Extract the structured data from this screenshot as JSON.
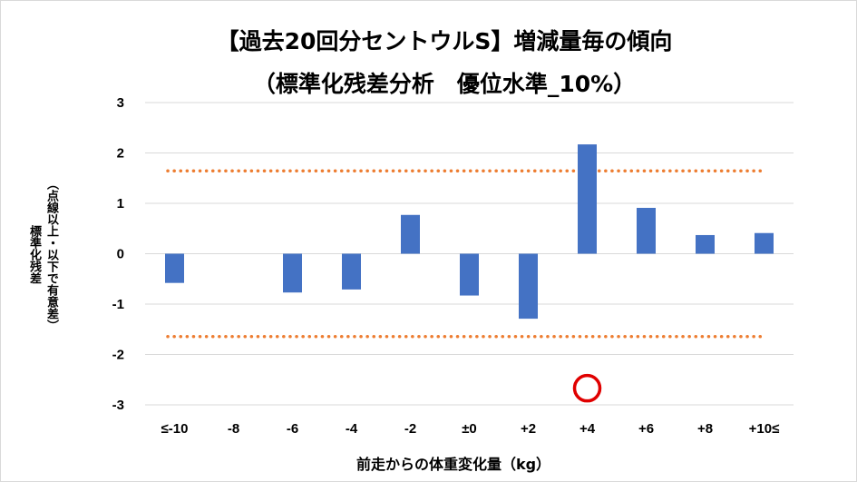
{
  "chart_data": {
    "type": "bar",
    "title_line1": "【過去20回分セントウルS】増減量毎の傾向",
    "title_line2": "（標準化残差分析　優位水準_10%）",
    "ylabel_main": "標準化残差",
    "ylabel_note": "（点線以上・以下で有意差）",
    "xlabel": "前走からの体重変化量（kg）",
    "categories": [
      "≤-10",
      "-8",
      "-6",
      "-4",
      "-2",
      "±0",
      "+2",
      "+4",
      "+6",
      "+8",
      "+10≤"
    ],
    "values": [
      -0.58,
      0,
      -0.77,
      -0.71,
      0.77,
      -0.83,
      -1.29,
      2.17,
      0.91,
      0.37,
      0.41
    ],
    "ylim": [
      -3,
      3
    ],
    "yticks": [
      3,
      2,
      1,
      0,
      -1,
      -2,
      -3
    ],
    "threshold_upper": 1.645,
    "threshold_lower": -1.645,
    "marker": {
      "category": "+4",
      "value": -2.67
    },
    "grid": true,
    "colors": {
      "bar": "#4472C4",
      "threshold": "#ED7D31",
      "marker_ring": "#E00000",
      "grid": "#d9d9d9"
    }
  }
}
